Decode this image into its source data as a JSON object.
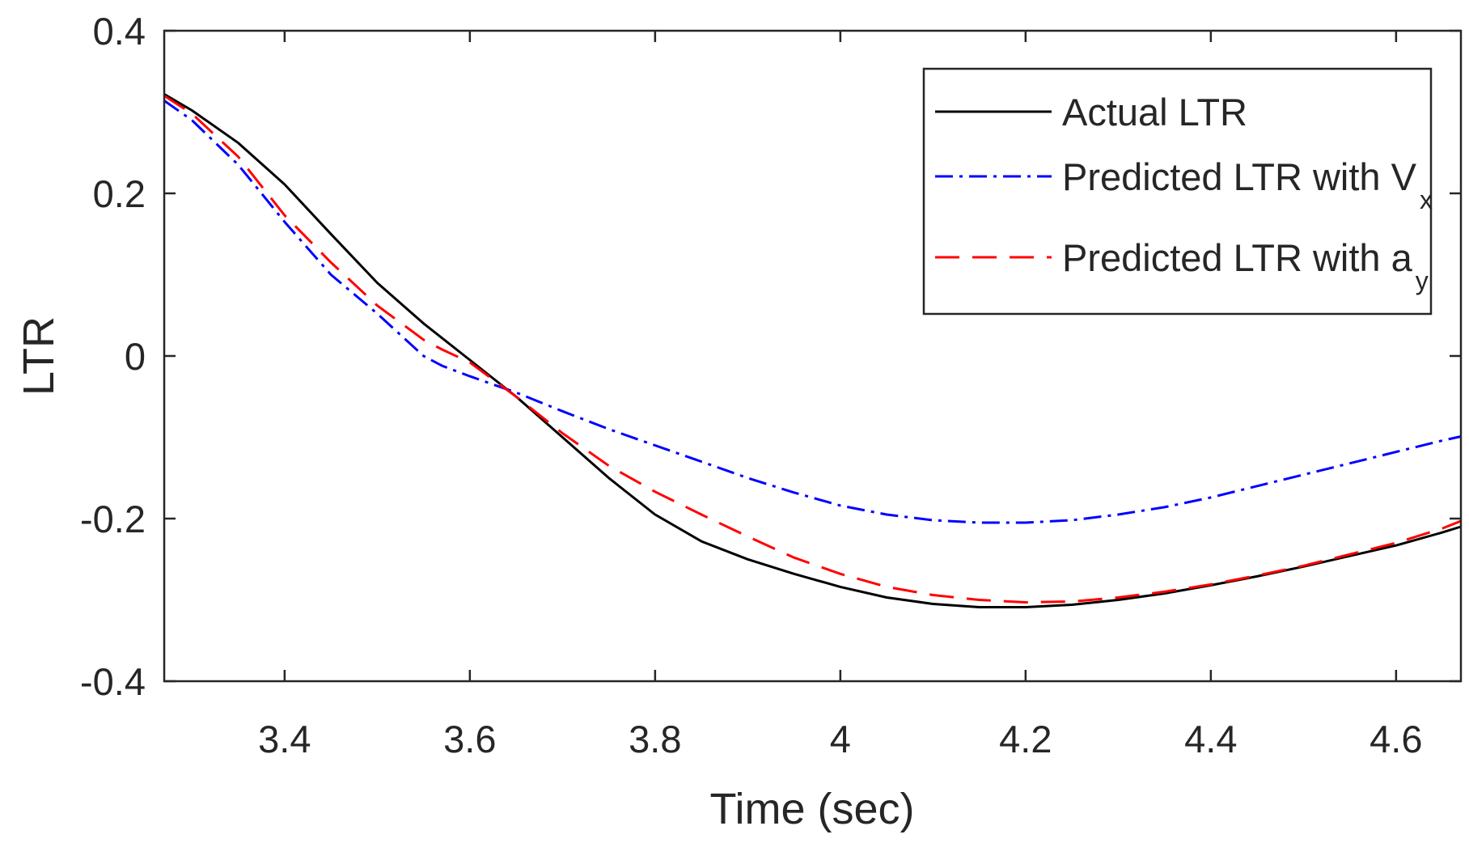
{
  "chart_data": {
    "type": "line",
    "title": "",
    "xlabel": "Time (sec)",
    "ylabel": "LTR",
    "xlim": [
      3.27,
      4.67
    ],
    "ylim": [
      -0.4,
      0.4
    ],
    "xticks": [
      3.4,
      3.6,
      3.8,
      4.0,
      4.2,
      4.4,
      4.6
    ],
    "xtick_labels": [
      "3.4",
      "3.6",
      "3.8",
      "4",
      "4.2",
      "4.4",
      "4.6"
    ],
    "yticks": [
      -0.4,
      -0.2,
      0.0,
      0.2,
      0.4
    ],
    "ytick_labels": [
      "-0.4",
      "-0.2",
      "0",
      "0.2",
      "0.4"
    ],
    "grid": false,
    "legend_position": "top-right",
    "series": [
      {
        "name": "Actual LTR",
        "legend_text": "Actual LTR",
        "legend_sub": "",
        "color": "#000000",
        "dash": "solid",
        "x": [
          3.27,
          3.3,
          3.35,
          3.4,
          3.45,
          3.5,
          3.55,
          3.6,
          3.65,
          3.7,
          3.75,
          3.8,
          3.85,
          3.9,
          3.95,
          4.0,
          4.05,
          4.1,
          4.15,
          4.2,
          4.25,
          4.3,
          4.35,
          4.4,
          4.45,
          4.5,
          4.55,
          4.6,
          4.65,
          4.67
        ],
        "y": [
          0.322,
          0.302,
          0.262,
          0.211,
          0.15,
          0.09,
          0.04,
          -0.005,
          -0.05,
          -0.1,
          -0.15,
          -0.195,
          -0.228,
          -0.25,
          -0.268,
          -0.284,
          -0.297,
          -0.305,
          -0.309,
          -0.309,
          -0.306,
          -0.3,
          -0.292,
          -0.282,
          -0.271,
          -0.259,
          -0.246,
          -0.233,
          -0.217,
          -0.21
        ]
      },
      {
        "name": "Predicted LTR with Vx",
        "legend_text": "Predicted LTR with V",
        "legend_sub": "x",
        "color": "#0000ff",
        "dash": "dashdot",
        "x": [
          3.27,
          3.3,
          3.35,
          3.4,
          3.45,
          3.5,
          3.55,
          3.57,
          3.6,
          3.65,
          3.7,
          3.75,
          3.8,
          3.85,
          3.9,
          3.95,
          4.0,
          4.05,
          4.1,
          4.15,
          4.2,
          4.25,
          4.3,
          4.35,
          4.4,
          4.45,
          4.5,
          4.55,
          4.6,
          4.65,
          4.67
        ],
        "y": [
          0.314,
          0.29,
          0.235,
          0.165,
          0.1,
          0.052,
          0.0,
          -0.012,
          -0.025,
          -0.045,
          -0.068,
          -0.09,
          -0.11,
          -0.13,
          -0.15,
          -0.168,
          -0.184,
          -0.195,
          -0.202,
          -0.205,
          -0.205,
          -0.202,
          -0.195,
          -0.186,
          -0.174,
          -0.16,
          -0.146,
          -0.132,
          -0.118,
          -0.104,
          -0.099
        ]
      },
      {
        "name": "Predicted LTR with ay",
        "legend_text": "Predicted LTR with a",
        "legend_sub": "y",
        "color": "#ff0000",
        "dash": "dashed",
        "x": [
          3.27,
          3.3,
          3.35,
          3.4,
          3.45,
          3.5,
          3.55,
          3.57,
          3.6,
          3.65,
          3.7,
          3.75,
          3.8,
          3.85,
          3.9,
          3.95,
          4.0,
          4.05,
          4.1,
          4.15,
          4.2,
          4.25,
          4.3,
          4.35,
          4.4,
          4.45,
          4.5,
          4.55,
          4.6,
          4.65,
          4.67
        ],
        "y": [
          0.32,
          0.298,
          0.245,
          0.173,
          0.115,
          0.062,
          0.02,
          0.008,
          -0.008,
          -0.05,
          -0.095,
          -0.135,
          -0.167,
          -0.195,
          -0.222,
          -0.248,
          -0.268,
          -0.284,
          -0.294,
          -0.3,
          -0.303,
          -0.302,
          -0.297,
          -0.29,
          -0.281,
          -0.27,
          -0.258,
          -0.244,
          -0.23,
          -0.212,
          -0.203
        ]
      }
    ]
  }
}
